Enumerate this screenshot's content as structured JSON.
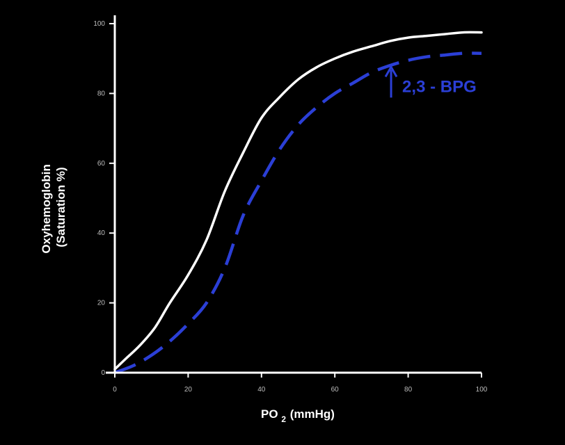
{
  "chart_data": {
    "type": "line",
    "title": "",
    "xlabel": "PO",
    "xlabel_sub": "2",
    "xlabel_unit": "(mmHg)",
    "ylabel_line1": "Oxyhemoglobin",
    "ylabel_line2": "(Saturation %)",
    "xlim": [
      0,
      100
    ],
    "ylim": [
      0,
      100
    ],
    "x_ticks": [
      "0",
      "20",
      "40",
      "60",
      "80",
      "100"
    ],
    "y_ticks": [
      "0",
      "20",
      "40",
      "60",
      "80",
      "100"
    ],
    "grid": false,
    "legend": "none",
    "series": [
      {
        "color": "#ffffff",
        "style": "solid",
        "x": [
          0,
          3,
          7,
          11,
          15,
          20,
          25,
          30,
          35,
          40,
          45,
          50,
          55,
          60,
          65,
          70,
          75,
          80,
          85,
          90,
          95,
          100
        ],
        "y": [
          1,
          4,
          8,
          13,
          20,
          28,
          38,
          52,
          63,
          73,
          79,
          84,
          87.5,
          90,
          92,
          93.5,
          95,
          96,
          96.5,
          97,
          97.5,
          97.5
        ]
      },
      {
        "color": "#2b3fd6",
        "style": "dashed",
        "x": [
          0,
          5,
          10,
          15,
          20,
          25,
          30,
          35,
          40,
          45,
          50,
          55,
          60,
          65,
          70,
          75,
          80,
          85,
          90,
          95,
          100
        ],
        "y": [
          0,
          2,
          5,
          9,
          14,
          20,
          30,
          45,
          55,
          64,
          71,
          76,
          80,
          83,
          86,
          88,
          89.5,
          90.5,
          91,
          91.5,
          91.5
        ]
      }
    ],
    "annotations": [
      {
        "text": "2,3 - BPG",
        "icon": "up-arrow-icon",
        "color": "#2b3fd6",
        "position_x": 78,
        "position_y": 82
      }
    ]
  }
}
